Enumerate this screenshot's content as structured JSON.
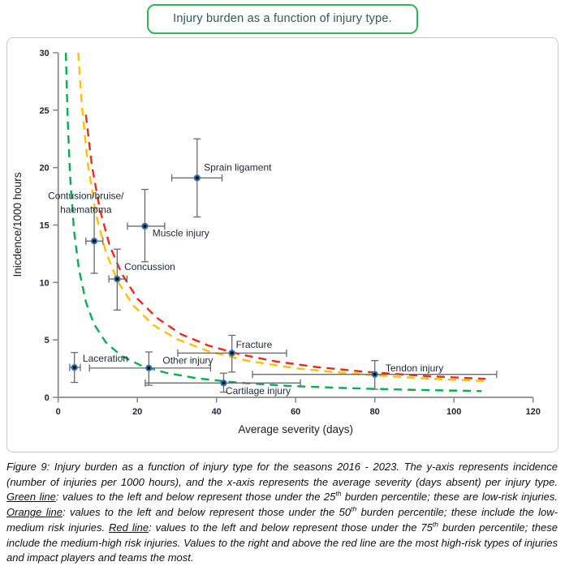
{
  "header": {
    "title": "Injury burden as a function of injury type."
  },
  "colors": {
    "green": "#00B050",
    "orange": "#FFC000",
    "red": "#EF2917",
    "axis": "#8a8a8a",
    "tick_text": "#1f2430",
    "label_text": "#1d2738",
    "error_bar": "#6a6a6a",
    "marker_fill": "#0d0d0d",
    "marker_stroke": "#2E74B5",
    "axis_title_text": "#1c1c1c"
  },
  "chart_data": {
    "type": "scatter",
    "title": "Injury burden as a function of injury type.",
    "xlabel": "Average severity (days)",
    "ylabel": "Inicdence/1000 hours",
    "xlim": [
      0,
      120
    ],
    "ylim": [
      0,
      30
    ],
    "xticks": [
      0,
      20,
      40,
      60,
      80,
      100,
      120
    ],
    "yticks": [
      0,
      5,
      10,
      15,
      20,
      25,
      30
    ],
    "grid": false,
    "legend": "none",
    "points": [
      {
        "name": "contusion-bruise-haematoma",
        "label": [
          "Contusion/bruise/",
          "haematoma"
        ],
        "x": 9.1,
        "y": 13.6,
        "x_lo": 7.0,
        "x_hi": 11.3,
        "y_lo": 10.8,
        "y_hi": 16.5,
        "label_x": 7.0,
        "label_y": 17.55,
        "anchor": "middle"
      },
      {
        "name": "concussion",
        "label": [
          "Concussion"
        ],
        "x": 14.9,
        "y": 10.3,
        "x_lo": 12.8,
        "x_hi": 17.4,
        "y_lo": 7.6,
        "y_hi": 12.9,
        "label_x": 16.7,
        "label_y": 11.35,
        "anchor": "start"
      },
      {
        "name": "muscle-injury",
        "label": [
          "Muscle injury"
        ],
        "x": 21.9,
        "y": 14.9,
        "x_lo": 17.5,
        "x_hi": 26.9,
        "y_lo": 11.8,
        "y_hi": 18.1,
        "label_x": 23.8,
        "label_y": 14.3,
        "anchor": "start"
      },
      {
        "name": "sprain-ligament",
        "label": [
          "Sprain ligament"
        ],
        "x": 35.1,
        "y": 19.1,
        "x_lo": 28.7,
        "x_hi": 41.4,
        "y_lo": 15.7,
        "y_hi": 22.5,
        "label_x": 36.8,
        "label_y": 20.0,
        "anchor": "start"
      },
      {
        "name": "laceration",
        "label": [
          "Laceration"
        ],
        "x": 4.1,
        "y": 2.6,
        "x_lo": 2.9,
        "x_hi": 5.6,
        "y_lo": 1.3,
        "y_hi": 3.9,
        "label_x": 6.2,
        "label_y": 3.4,
        "anchor": "start"
      },
      {
        "name": "other-injury",
        "label": [
          "Other injury"
        ],
        "x": 22.9,
        "y": 2.55,
        "x_lo": 7.9,
        "x_hi": 38.5,
        "y_lo": 1.05,
        "y_hi": 3.95,
        "label_x": 26.4,
        "label_y": 3.2,
        "anchor": "start"
      },
      {
        "name": "fracture",
        "label": [
          "Fracture"
        ],
        "x": 43.9,
        "y": 3.85,
        "x_lo": 30.2,
        "x_hi": 57.7,
        "y_lo": 2.2,
        "y_hi": 5.4,
        "label_x": 44.9,
        "label_y": 4.6,
        "anchor": "start"
      },
      {
        "name": "cartilage-injury",
        "label": [
          "Cartilage injury"
        ],
        "x": 41.8,
        "y": 1.25,
        "x_lo": 22.0,
        "x_hi": 61.2,
        "y_lo": 0.45,
        "y_hi": 2.1,
        "label_x": 42.3,
        "label_y": 0.55,
        "anchor": "start"
      },
      {
        "name": "tendon-injury",
        "label": [
          "Tendon injury"
        ],
        "x": 80.0,
        "y": 2.0,
        "x_lo": 49.1,
        "x_hi": 110.8,
        "y_lo": 0.7,
        "y_hi": 3.2,
        "label_x": 82.7,
        "label_y": 2.55,
        "anchor": "start"
      }
    ],
    "curves": [
      {
        "name": "green-25th-percentile",
        "color_key": "green",
        "burden": 58,
        "points": [
          [
            1.93,
            30
          ],
          [
            2.4,
            24.2
          ],
          [
            3,
            19.3
          ],
          [
            4,
            14.5
          ],
          [
            5.2,
            11.2
          ],
          [
            7,
            8.3
          ],
          [
            9,
            6.4
          ],
          [
            12,
            4.8
          ],
          [
            16,
            3.6
          ],
          [
            21,
            2.76
          ],
          [
            27,
            2.15
          ],
          [
            35,
            1.66
          ],
          [
            45,
            1.29
          ],
          [
            58,
            1.0
          ],
          [
            72,
            0.81
          ],
          [
            88,
            0.66
          ],
          [
            107,
            0.54
          ]
        ]
      },
      {
        "name": "orange-50th-percentile",
        "color_key": "orange",
        "burden": 152,
        "points": [
          [
            5.07,
            30
          ],
          [
            6,
            25.3
          ],
          [
            7.5,
            20.3
          ],
          [
            9.5,
            16
          ],
          [
            12,
            12.7
          ],
          [
            15,
            10.1
          ],
          [
            19,
            8
          ],
          [
            24,
            6.3
          ],
          [
            30,
            5.07
          ],
          [
            38,
            4
          ],
          [
            48,
            3.17
          ],
          [
            60,
            2.53
          ],
          [
            75,
            2.03
          ],
          [
            92,
            1.65
          ],
          [
            108,
            1.41
          ]
        ]
      },
      {
        "name": "red-75th-percentile",
        "color_key": "red",
        "burden": 172,
        "points": [
          [
            7,
            24.6
          ],
          [
            8.5,
            20.2
          ],
          [
            10.5,
            16.4
          ],
          [
            13,
            13.2
          ],
          [
            16,
            10.8
          ],
          [
            20,
            8.6
          ],
          [
            25,
            6.9
          ],
          [
            31,
            5.5
          ],
          [
            38,
            4.5
          ],
          [
            46,
            3.74
          ],
          [
            55,
            3.13
          ],
          [
            65,
            2.65
          ],
          [
            78,
            2.21
          ],
          [
            92,
            1.87
          ],
          [
            108,
            1.6
          ]
        ]
      }
    ]
  },
  "caption": {
    "segments": [
      {
        "t": "Figure 9: Injury burden as a function of injury type for the seasons 2016 - 2023. The y-axis represents incidence (number of injuries per 1000 hours), and the x-axis represents the average severity (days absent) per injury type. "
      },
      {
        "t": "Green line",
        "u": true
      },
      {
        "t": ": values to the left and below represent those under the 25"
      },
      {
        "t": "th",
        "sup": true
      },
      {
        "t": " burden percentile; these are low-risk injuries. "
      },
      {
        "t": "Orange line",
        "u": true
      },
      {
        "t": ": values to the left and below represent those under the 50"
      },
      {
        "t": "th",
        "sup": true
      },
      {
        "t": " burden percentile; these include the low-medium risk injuries. "
      },
      {
        "t": "Red line",
        "u": true
      },
      {
        "t": ": values to the left and below represent those under the 75"
      },
      {
        "t": "th",
        "sup": true
      },
      {
        "t": " burden percentile; these include the medium-high risk injuries. Values to the right and above the red line are the most high-risk types of injuries and impact players and teams the most."
      }
    ]
  }
}
